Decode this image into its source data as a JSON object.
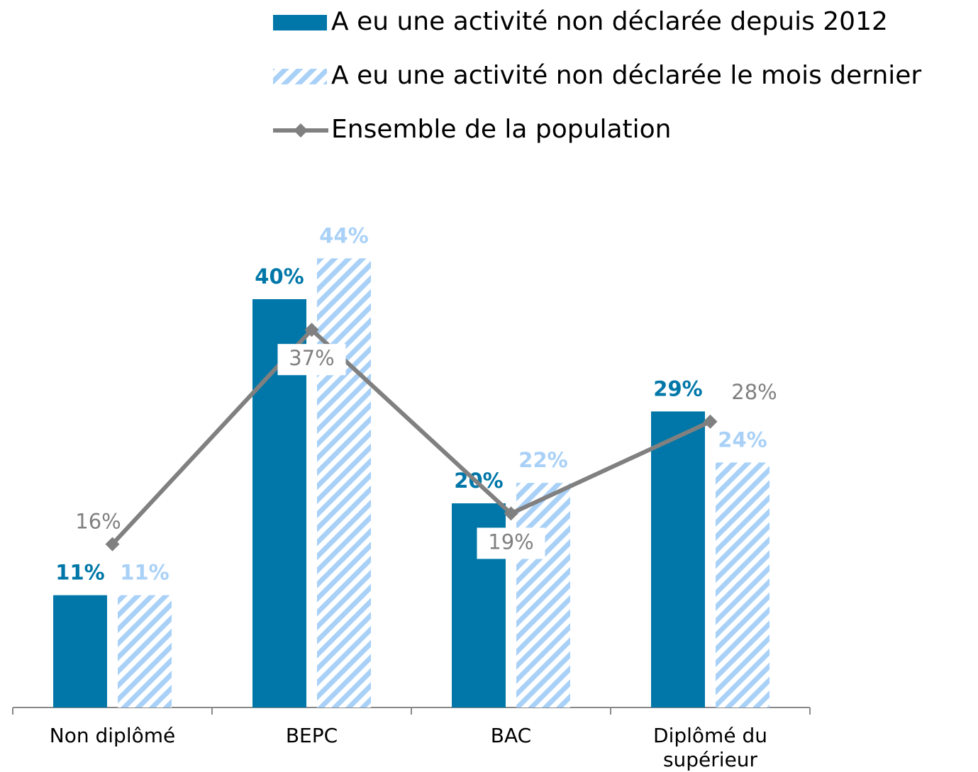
{
  "chart_data": {
    "type": "bar-line",
    "categories": [
      "Non diplômé",
      "BEPC",
      "BAC",
      "Diplômé du supérieur"
    ],
    "series": [
      {
        "name": "A eu une activité non déclarée depuis 2012",
        "type": "bar",
        "color": "#0077a8",
        "pattern": "solid",
        "values": [
          11,
          40,
          20,
          29
        ],
        "value_labels": [
          "11%",
          "40%",
          "20%",
          "29%"
        ]
      },
      {
        "name": "A eu une activité non déclarée le mois dernier",
        "type": "bar",
        "color": "#a9d1f7",
        "pattern": "hatch",
        "values": [
          11,
          44,
          22,
          24
        ],
        "value_labels": [
          "11%",
          "44%",
          "22%",
          "24%"
        ]
      },
      {
        "name": "Ensemble de la population",
        "type": "line",
        "color": "#808080",
        "values": [
          16,
          37,
          19,
          28
        ],
        "value_labels": [
          "16%",
          "37%",
          "19%",
          "28%"
        ]
      }
    ],
    "ylim": [
      0,
      50
    ],
    "legend": "top"
  }
}
